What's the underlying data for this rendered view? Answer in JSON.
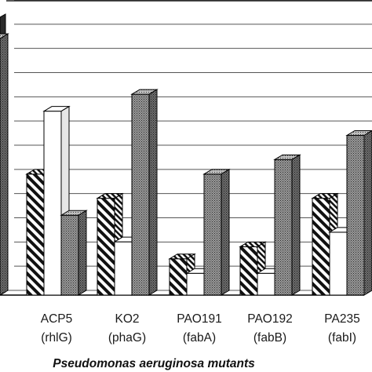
{
  "chart_data": {
    "type": "bar",
    "style": "3d-clustered",
    "grid": true,
    "legend": "none",
    "title": "",
    "ylabel": "",
    "ylim": [
      0,
      12
    ],
    "xlabel": "Pseudomonas aeruginosa mutants",
    "categories": [
      {
        "name": "ACP5",
        "sub": "(rhlG)"
      },
      {
        "name": "KO2",
        "sub": "(phaG)"
      },
      {
        "name": "PAO191",
        "sub": "(fabA)"
      },
      {
        "name": "PAO192",
        "sub": "(fabB)"
      },
      {
        "name": "PA235",
        "sub": "(fabI)"
      }
    ],
    "series": [
      {
        "pattern": "hatched",
        "values": [
          5.0,
          4.0,
          1.5,
          2.0,
          4.0
        ]
      },
      {
        "pattern": "white",
        "values": [
          7.6,
          2.2,
          0.9,
          0.9,
          2.6
        ]
      },
      {
        "pattern": "dotted",
        "values": [
          3.3,
          8.3,
          5.0,
          5.6,
          6.6
        ]
      }
    ],
    "partial_series": [
      {
        "pattern": "dotted",
        "value": 10.6
      }
    ],
    "colors": {
      "hatch_stroke": "#111111",
      "white_fill": "#ffffff",
      "dotted_fill": "#8a8a8a",
      "grid": "#555555",
      "axis": "#000000"
    }
  }
}
